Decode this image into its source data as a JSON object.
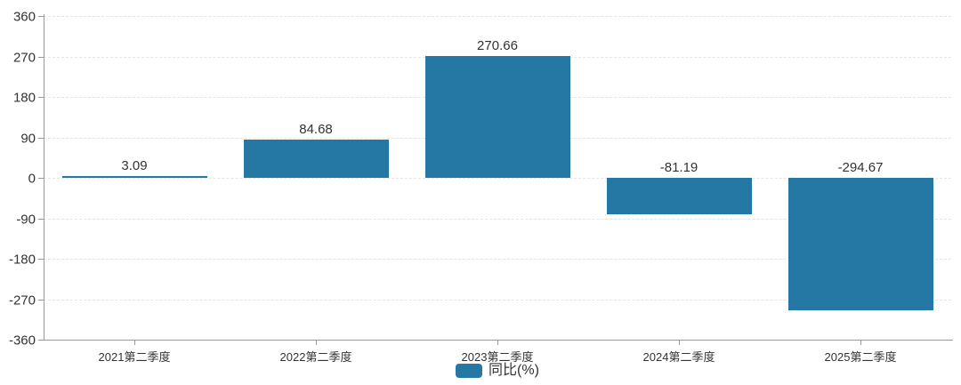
{
  "chart_data": {
    "type": "bar",
    "categories": [
      "2021第二季度",
      "2022第二季度",
      "2023第二季度",
      "2024第二季度",
      "2025第二季度"
    ],
    "series": [
      {
        "name": "同比(%)",
        "values": [
          3.09,
          84.68,
          270.66,
          -81.19,
          -294.67
        ]
      }
    ],
    "value_labels": [
      "3.09",
      "84.68",
      "270.66",
      "-81.19",
      "-294.67"
    ],
    "title": "",
    "xlabel": "",
    "ylabel": "",
    "ylim": [
      -360,
      360
    ],
    "y_ticks": [
      360,
      270,
      180,
      90,
      0,
      -90,
      -180,
      -270,
      -360
    ],
    "grid": true,
    "grid_style": "dashed",
    "legend_position": "bottom-center",
    "colors": {
      "bar": "#2577a4",
      "axis": "#999999",
      "grid": "#e4e4e4",
      "text": "#333333"
    }
  },
  "legend": {
    "label": "同比(%)"
  }
}
